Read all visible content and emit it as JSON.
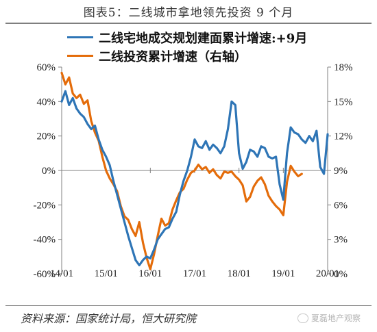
{
  "figure": {
    "title": "图表5：二线城市拿地领先投资 9 个月",
    "source": "资料来源：国家统计局，恒大研究院",
    "watermark": "夏磊地产观察"
  },
  "chart_data": {
    "type": "line",
    "x_ticks": [
      "14/01",
      "15/01",
      "16/01",
      "17/01",
      "18/01",
      "19/01",
      "20/01"
    ],
    "x_range": [
      "2014-01",
      "2020-01"
    ],
    "ylim_left": [
      -60,
      60
    ],
    "yticks_left": [
      "60%",
      "40%",
      "20%",
      "0%",
      "-20%",
      "-40%",
      "-60%"
    ],
    "ylim_right": [
      0,
      18
    ],
    "yticks_right": [
      "18%",
      "15%",
      "12%",
      "9%",
      "6%",
      "3%",
      "0%"
    ],
    "grid": false,
    "legend_position": "top-left",
    "series": [
      {
        "name": "二线宅地成交规划建面累计增速:+9月",
        "axis": "left",
        "color": "#2e75b6",
        "points": [
          [
            "2014-01",
            40
          ],
          [
            "2014-02",
            46
          ],
          [
            "2014-03",
            38
          ],
          [
            "2014-04",
            42
          ],
          [
            "2014-05",
            36
          ],
          [
            "2014-06",
            33
          ],
          [
            "2014-07",
            31
          ],
          [
            "2014-08",
            27
          ],
          [
            "2014-09",
            24
          ],
          [
            "2014-10",
            26
          ],
          [
            "2014-11",
            18
          ],
          [
            "2014-12",
            12
          ],
          [
            "2015-01",
            8
          ],
          [
            "2015-02",
            3
          ],
          [
            "2015-03",
            -6
          ],
          [
            "2015-04",
            -14
          ],
          [
            "2015-05",
            -22
          ],
          [
            "2015-06",
            -30
          ],
          [
            "2015-07",
            -38
          ],
          [
            "2015-08",
            -45
          ],
          [
            "2015-09",
            -52
          ],
          [
            "2015-10",
            -55
          ],
          [
            "2015-11",
            -52
          ],
          [
            "2015-12",
            -50
          ],
          [
            "2016-01",
            -51
          ],
          [
            "2016-02",
            -46
          ],
          [
            "2016-03",
            -40
          ],
          [
            "2016-04",
            -37
          ],
          [
            "2016-05",
            -34
          ],
          [
            "2016-06",
            -33
          ],
          [
            "2016-07",
            -28
          ],
          [
            "2016-08",
            -24
          ],
          [
            "2016-09",
            -14
          ],
          [
            "2016-10",
            -6
          ],
          [
            "2016-11",
            0
          ],
          [
            "2016-12",
            8
          ],
          [
            "2017-01",
            18
          ],
          [
            "2017-02",
            14
          ],
          [
            "2017-03",
            13
          ],
          [
            "2017-04",
            17
          ],
          [
            "2017-05",
            12
          ],
          [
            "2017-06",
            15
          ],
          [
            "2017-07",
            13
          ],
          [
            "2017-08",
            10
          ],
          [
            "2017-09",
            14
          ],
          [
            "2017-10",
            24
          ],
          [
            "2017-11",
            40
          ],
          [
            "2017-12",
            38
          ],
          [
            "2018-01",
            10
          ],
          [
            "2018-02",
            1
          ],
          [
            "2018-03",
            5
          ],
          [
            "2018-04",
            12
          ],
          [
            "2018-05",
            11
          ],
          [
            "2018-06",
            8
          ],
          [
            "2018-07",
            14
          ],
          [
            "2018-08",
            13
          ],
          [
            "2018-09",
            8
          ],
          [
            "2018-10",
            7
          ],
          [
            "2018-11",
            8
          ],
          [
            "2018-12",
            -8
          ],
          [
            "2019-01",
            -17
          ],
          [
            "2019-02",
            10
          ],
          [
            "2019-03",
            25
          ],
          [
            "2019-04",
            22
          ],
          [
            "2019-05",
            21
          ],
          [
            "2019-06",
            18
          ],
          [
            "2019-07",
            16
          ],
          [
            "2019-08",
            20
          ],
          [
            "2019-09",
            17
          ],
          [
            "2019-10",
            23
          ],
          [
            "2019-11",
            2
          ],
          [
            "2019-12",
            -2
          ],
          [
            "2020-01",
            21
          ]
        ]
      },
      {
        "name": "二线投资累计增速（右轴）",
        "axis": "right",
        "color": "#e46c0a",
        "points": [
          [
            "2014-01",
            17.5
          ],
          [
            "2014-02",
            16.5
          ],
          [
            "2014-03",
            17.1
          ],
          [
            "2014-04",
            15.7
          ],
          [
            "2014-05",
            15.3
          ],
          [
            "2014-06",
            15.6
          ],
          [
            "2014-07",
            14.8
          ],
          [
            "2014-08",
            15.1
          ],
          [
            "2014-09",
            13.3
          ],
          [
            "2014-10",
            12.3
          ],
          [
            "2014-11",
            11.6
          ],
          [
            "2014-12",
            10.2
          ],
          [
            "2015-01",
            9.0
          ],
          [
            "2015-02",
            8.3
          ],
          [
            "2015-03",
            7.8
          ],
          [
            "2015-04",
            7.2
          ],
          [
            "2015-05",
            5.9
          ],
          [
            "2015-06",
            5.0
          ],
          [
            "2015-07",
            4.7
          ],
          [
            "2015-08",
            3.9
          ],
          [
            "2015-09",
            3.3
          ],
          [
            "2015-10",
            4.5
          ],
          [
            "2015-11",
            2.7
          ],
          [
            "2015-12",
            1.4
          ],
          [
            "2016-01",
            0.4
          ],
          [
            "2016-02",
            1.7
          ],
          [
            "2016-03",
            3.3
          ],
          [
            "2016-04",
            4.8
          ],
          [
            "2016-05",
            4.2
          ],
          [
            "2016-06",
            4.4
          ],
          [
            "2016-07",
            5.6
          ],
          [
            "2016-08",
            6.4
          ],
          [
            "2016-09",
            7.1
          ],
          [
            "2016-10",
            7.4
          ],
          [
            "2016-11",
            8.2
          ],
          [
            "2016-12",
            8.8
          ],
          [
            "2017-01",
            9.0
          ],
          [
            "2017-02",
            9.5
          ],
          [
            "2017-03",
            9.1
          ],
          [
            "2017-04",
            9.3
          ],
          [
            "2017-05",
            8.8
          ],
          [
            "2017-06",
            9.1
          ],
          [
            "2017-07",
            8.6
          ],
          [
            "2017-08",
            8.3
          ],
          [
            "2017-09",
            8.9
          ],
          [
            "2017-10",
            8.8
          ],
          [
            "2017-11",
            8.9
          ],
          [
            "2017-12",
            8.5
          ],
          [
            "2018-01",
            8.2
          ],
          [
            "2018-02",
            7.7
          ],
          [
            "2018-03",
            6.3
          ],
          [
            "2018-04",
            6.7
          ],
          [
            "2018-05",
            7.6
          ],
          [
            "2018-06",
            8.1
          ],
          [
            "2018-07",
            8.4
          ],
          [
            "2018-08",
            7.8
          ],
          [
            "2018-09",
            6.8
          ],
          [
            "2018-10",
            6.3
          ],
          [
            "2018-11",
            5.9
          ],
          [
            "2018-12",
            5.6
          ],
          [
            "2019-01",
            5.1
          ],
          [
            "2019-02",
            8.0
          ],
          [
            "2019-03",
            9.4
          ],
          [
            "2019-04",
            8.9
          ],
          [
            "2019-05",
            8.5
          ],
          [
            "2019-06",
            8.7
          ]
        ]
      }
    ]
  }
}
